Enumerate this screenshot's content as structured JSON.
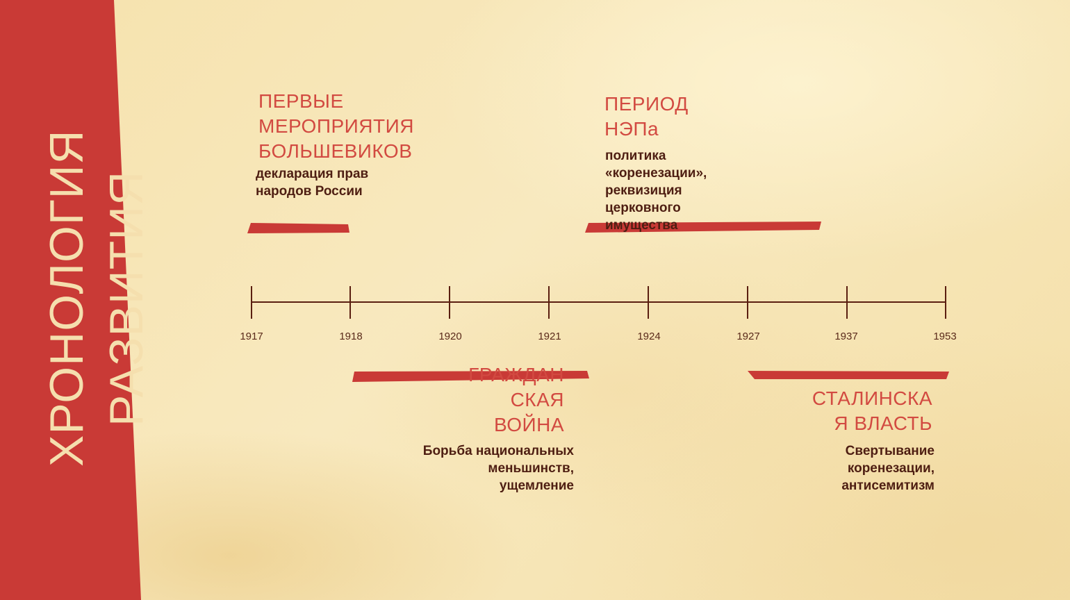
{
  "slide": {
    "side_title_line1": "ХРОНОЛОГИЯ",
    "side_title_line2": "РАЗВИТИЯ"
  },
  "colors": {
    "accent_red": "#c93a36",
    "heading_red": "#d24a41",
    "timeline_brown": "#5a1e10",
    "background": "#f7e6b4"
  },
  "timeline": {
    "years": [
      "1917",
      "1918",
      "1920",
      "1921",
      "1924",
      "1927",
      "1937",
      "1953"
    ]
  },
  "events": [
    {
      "heading": [
        "ПЕРВЫЕ",
        "МЕРОПРИЯТИЯ",
        "БОЛЬШЕВИКОВ"
      ],
      "description": [
        "декларация прав",
        "народов России"
      ]
    },
    {
      "heading": [
        "ПЕРИОД",
        "НЭПа"
      ],
      "description": [
        "политика",
        "«коренезации»,",
        "реквизиция",
        "церковного",
        "имущества"
      ]
    },
    {
      "heading": [
        "ГРАЖДАН",
        "СКАЯ",
        "ВОЙНА"
      ],
      "description": [
        "Борьба национальных",
        "меньшинств,",
        "ущемление"
      ]
    },
    {
      "heading": [
        "СТАЛИНСКА",
        "Я ВЛАСТЬ"
      ],
      "description": [
        "Свертывание",
        "коренезации,",
        "антисемитизм"
      ]
    }
  ]
}
